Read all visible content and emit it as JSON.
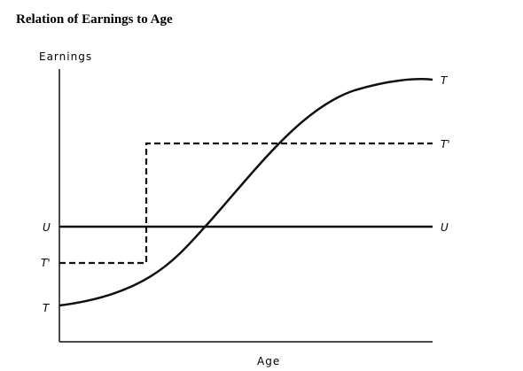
{
  "title": "Relation of Earnings to Age",
  "axes": {
    "y_label": "Earnings",
    "x_label": "Age"
  },
  "curves": {
    "T": {
      "left_label": "T",
      "right_label": "T"
    },
    "T_prime": {
      "left_label": "T'",
      "right_label": "T'"
    },
    "U": {
      "left_label": "U",
      "right_label": "U"
    }
  }
}
